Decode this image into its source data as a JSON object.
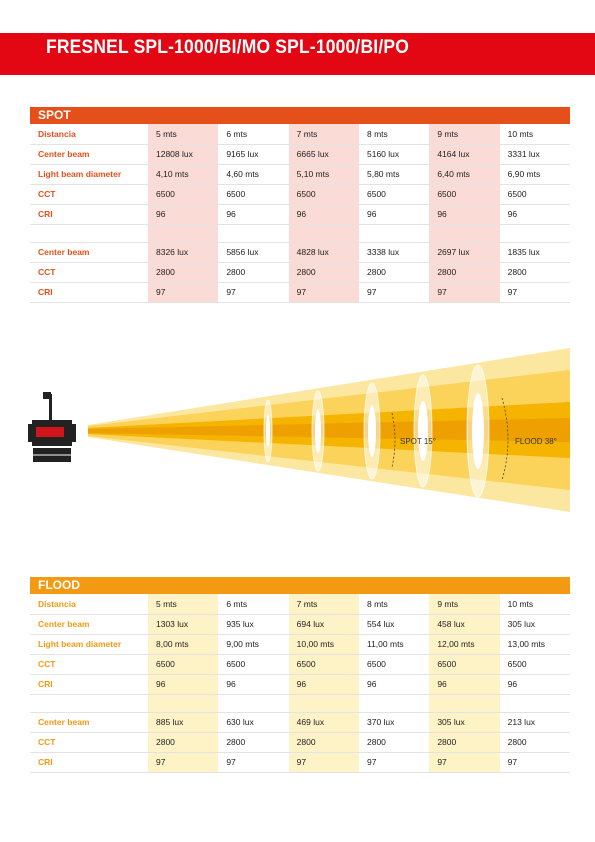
{
  "title": "FRESNEL SPL-1000/BI/MO  SPL-1000/BI/PO",
  "colors": {
    "banner": "#e30613",
    "spot": "#e5501a",
    "flood": "#f39a12"
  },
  "spot": {
    "heading": "SPOT",
    "rows": [
      {
        "label": "Distancia",
        "cells": [
          "5 mts",
          "6 mts",
          "7 mts",
          "8 mts",
          "9 mts",
          "10 mts"
        ]
      },
      {
        "label": "Center beam",
        "cells": [
          "12808 lux",
          "9165 lux",
          "6665 lux",
          "5160 lux",
          "4164 lux",
          "3331 lux"
        ]
      },
      {
        "label": "Light beam diameter",
        "cells": [
          "4,10 mts",
          "4,60 mts",
          "5,10 mts",
          "5,80 mts",
          "6,40 mts",
          "6,90 mts"
        ]
      },
      {
        "label": "CCT",
        "cells": [
          "6500",
          "6500",
          "6500",
          "6500",
          "6500",
          "6500"
        ]
      },
      {
        "label": "CRI",
        "cells": [
          "96",
          "96",
          "96",
          "96",
          "96",
          "96"
        ]
      },
      {
        "label": "",
        "cells": [
          "",
          "",
          "",
          "",
          "",
          ""
        ]
      },
      {
        "label": "Center beam",
        "cells": [
          "8326 lux",
          "5856 lux",
          "4828 lux",
          "3338 lux",
          "2697 lux",
          "1835 lux"
        ]
      },
      {
        "label": "CCT",
        "cells": [
          "2800",
          "2800",
          "2800",
          "2800",
          "2800",
          "2800"
        ]
      },
      {
        "label": "CRI",
        "cells": [
          "97",
          "97",
          "97",
          "97",
          "97",
          "97"
        ]
      }
    ]
  },
  "diagram": {
    "spot_label": "SPOT 15°",
    "flood_label": "FLOOD 38°"
  },
  "flood": {
    "heading": "FLOOD",
    "rows": [
      {
        "label": "Distancia",
        "cells": [
          "5 mts",
          "6 mts",
          "7 mts",
          "8 mts",
          "9 mts",
          "10 mts"
        ]
      },
      {
        "label": "Center beam",
        "cells": [
          "1303 lux",
          "935 lux",
          "694 lux",
          "554 lux",
          "458 lux",
          "305 lux"
        ]
      },
      {
        "label": "Light beam diameter",
        "cells": [
          "8,00 mts",
          "9,00 mts",
          "10,00 mts",
          "11,00 mts",
          "12,00 mts",
          "13,00 mts"
        ]
      },
      {
        "label": "CCT",
        "cells": [
          "6500",
          "6500",
          "6500",
          "6500",
          "6500",
          "6500"
        ]
      },
      {
        "label": "CRI",
        "cells": [
          "96",
          "96",
          "96",
          "96",
          "96",
          "96"
        ]
      },
      {
        "label": "",
        "cells": [
          "",
          "",
          "",
          "",
          "",
          ""
        ]
      },
      {
        "label": "Center beam",
        "cells": [
          "885 lux",
          "630 lux",
          "469 lux",
          "370 lux",
          "305 lux",
          "213 lux"
        ]
      },
      {
        "label": "CCT",
        "cells": [
          "2800",
          "2800",
          "2800",
          "2800",
          "2800",
          "2800"
        ]
      },
      {
        "label": "CRI",
        "cells": [
          "97",
          "97",
          "97",
          "97",
          "97",
          "97"
        ]
      }
    ]
  }
}
